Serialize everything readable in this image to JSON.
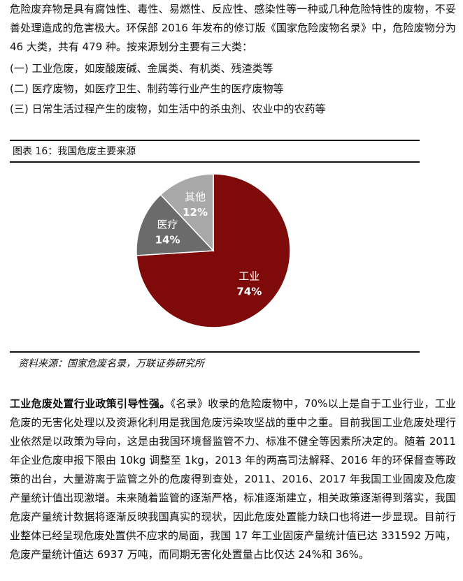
{
  "intro": {
    "paragraph": "危险废弃物是具有腐蚀性、毒性、易燃性、反应性、感染性等一种或几种危险特性的废物，不妥善处理造成的危害极大。环保部 2016 年发布的修订版《国家危险废物名录》中，危险废物分为 46 大类，共有 479 种。按来源划分主要有三大类：",
    "items": [
      "(一) 工业危废，如废酸废碱、金属类、有机类、残渣类等",
      "(二) 医疗废物，如医疗卫生、制药等行业产生的医疗废物等",
      "(三) 日常生活过程产生的废物，如生活中的杀虫剂、农业中的农药等"
    ]
  },
  "figure": {
    "caption": "图表 16：我国危废主要来源",
    "source": "资料来源：国家危废名录，万联证券研究所"
  },
  "chart_data": {
    "type": "pie",
    "categories": [
      "工业",
      "医疗",
      "其他"
    ],
    "values": [
      74,
      14,
      12
    ],
    "value_labels": [
      "74%",
      "14%",
      "12%"
    ],
    "colors": [
      "#7f0a0a",
      "#6b6b6b",
      "#a8a8a8"
    ]
  },
  "body": {
    "lead": "工业危废处置行业政策引导性强。",
    "text": "《名录》收录的危险废物中，70%以上是自于工业行业，工业危废的无害化处理以及资源化利用是我国危废污染攻坚战的重中之重。目前我国工业危废处理行业依然是以政策为导向，这是由我国环境督监管不力、标准不健全等因素所决定的。随着 2011 年企业危废申报下限由 10kg 调整至 1kg，2013 年的两高司法解释、2016 年的环保督查等政策的出台，大量游离于监管之外的危废得到查处，2011、2016、2017 年我国工业固废及危废产量统计值出现激增。未来随着监管的逐渐严格，标准逐渐建立，相关政策逐渐得到落实，我国危废产量统计数据将逐渐反映我国真实的现状，因此危废处置能力缺口也将进一步显现。目前行业整体已经呈现危废处置供不应求的局面，我国 17 年工业固废产量统计值已达 331592 万吨，危废产量统计值达 6937 万吨，而同期无害化处置量占比仅达 24%和 36%。"
  }
}
